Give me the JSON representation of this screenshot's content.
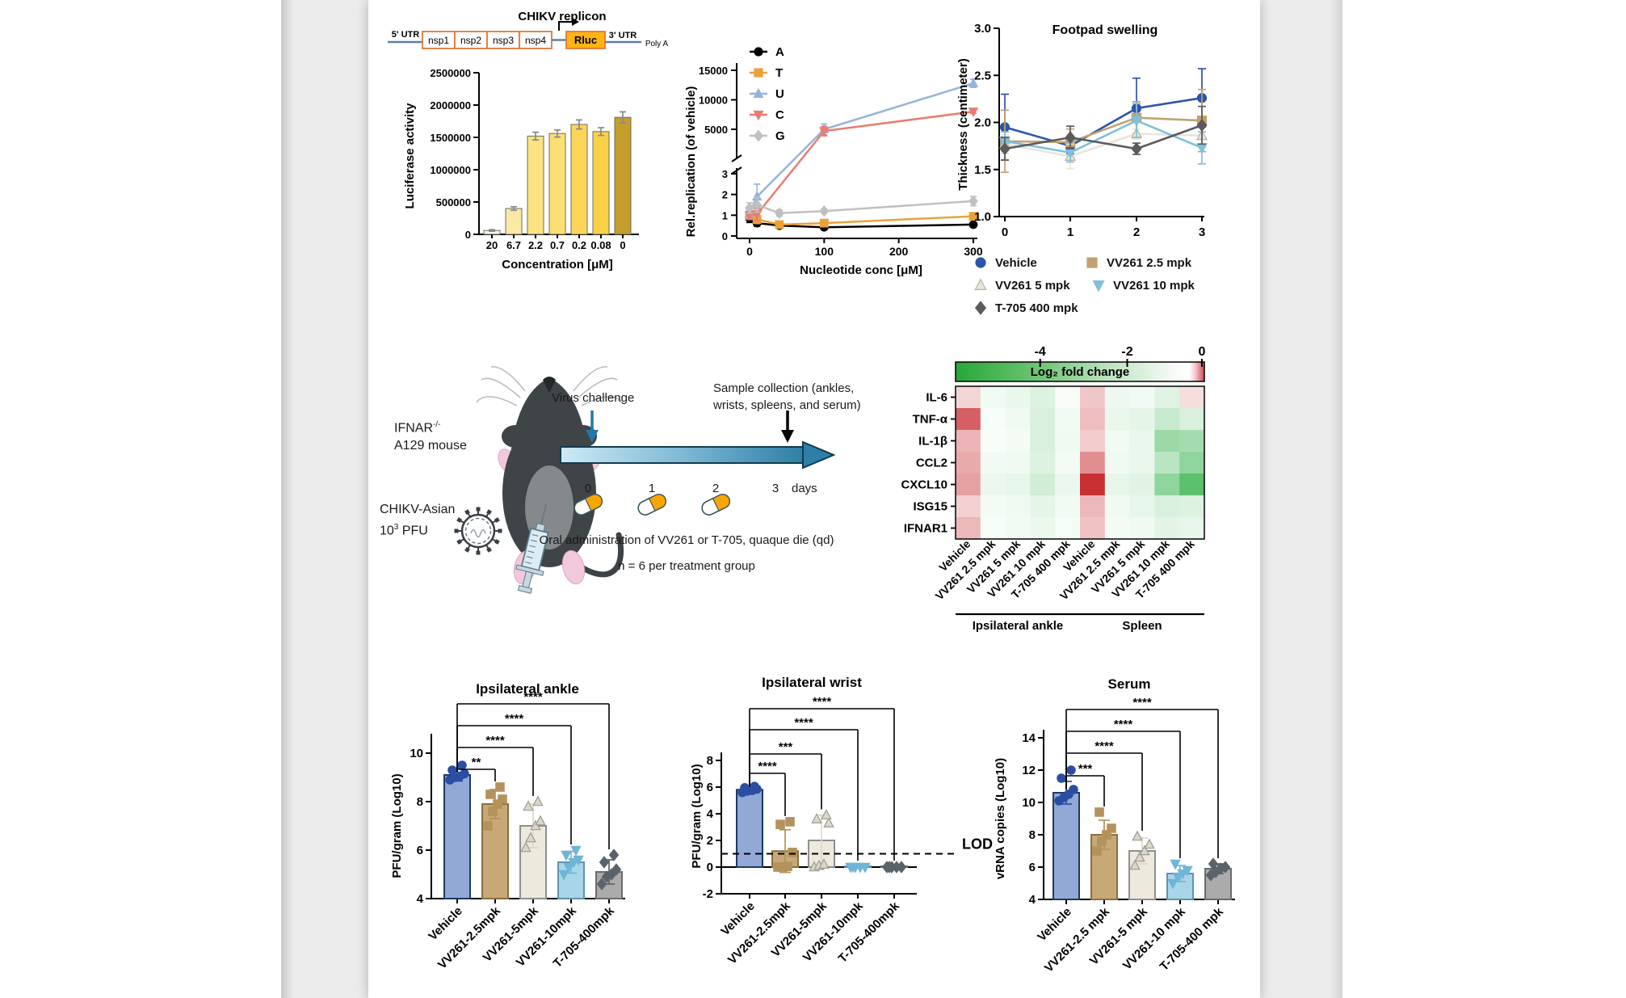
{
  "treatment_styles": [
    {
      "name": "Vehicle",
      "fill": "#92A8D5",
      "stroke": "#1F3864",
      "point": "#2B4EA2",
      "marker": "circle"
    },
    {
      "name": "VV261 2.5 mpk",
      "fill": "#C6A977",
      "stroke": "#8B6F3E",
      "point": "#B3925C",
      "marker": "square"
    },
    {
      "name": "VV261 5 mpk",
      "fill": "#EDE9DD",
      "stroke": "#8F8F8F",
      "point": "#DDD8C4",
      "pstroke": "#9A9A9A",
      "marker": "triangle-up"
    },
    {
      "name": "VV261 10 mpk",
      "fill": "#A9D5E9",
      "stroke": "#5E93AC",
      "point": "#6FB5D6",
      "marker": "triangle-down"
    },
    {
      "name": "T-705 400 mpk",
      "fill": "#ABABAB",
      "stroke": "#6B6B6B",
      "point": "#5A626B",
      "marker": "diamond"
    }
  ],
  "replicon": {
    "title": "CHIKV replicon",
    "utr5": "5' UTR",
    "utr3": "3' UTR",
    "polya": "Poly A",
    "genes": [
      "nsp1",
      "nsp2",
      "nsp3",
      "nsp4"
    ],
    "reporter": "Rluc",
    "gene_fill": "#ffffff",
    "gene_stroke": "#E0793B",
    "reporter_fill": "#FFB411",
    "line_color": "#5B7FA6"
  },
  "chart_data": [
    {
      "panel": "luciferase",
      "type": "bar",
      "ylabel": "Luciferase activity",
      "xlabel": "Concentration [μM]",
      "categories": [
        "20",
        "6.7",
        "2.2",
        "0.7",
        "0.2",
        "0.08",
        "0"
      ],
      "values": [
        60000,
        400000,
        1520000,
        1560000,
        1700000,
        1590000,
        1810000
      ],
      "errors": [
        12000,
        28000,
        60000,
        55000,
        70000,
        60000,
        85000
      ],
      "colors": [
        "#FAF5DE",
        "#FBE9A6",
        "#FCE381",
        "#FCDF72",
        "#FBD659",
        "#F9D146",
        "#C49E2A"
      ],
      "yticks": [
        0,
        500000,
        1000000,
        1500000,
        2000000,
        2500000
      ],
      "ylim": [
        0,
        2500000
      ]
    },
    {
      "panel": "nucleotide",
      "type": "line",
      "ylabel": "Rel.replication (of vehicle)",
      "xlabel": "Nucleotide conc [μM]",
      "xticks": [
        0,
        100,
        200,
        300
      ],
      "yticks_top": [
        5000,
        10000,
        15000
      ],
      "yticks_bottom": [
        0,
        1,
        2,
        3
      ],
      "axis_break": true,
      "series": [
        {
          "name": "A",
          "color": "#000000",
          "marker": "circle",
          "x": [
            0,
            10,
            40,
            100,
            300
          ],
          "y": [
            0.85,
            0.62,
            0.5,
            0.42,
            0.55
          ],
          "err": [
            0.2,
            0.15,
            0.08,
            0.06,
            0.08
          ]
        },
        {
          "name": "T",
          "color": "#E9A23B",
          "marker": "square",
          "x": [
            0,
            10,
            40,
            100,
            300
          ],
          "y": [
            1.0,
            0.8,
            0.55,
            0.62,
            0.95
          ],
          "err": [
            0.15,
            0.2,
            0.1,
            0.08,
            0.1
          ]
        },
        {
          "name": "U",
          "color": "#96B3DF",
          "marker": "triangle-up",
          "x": [
            0,
            10,
            100,
            300
          ],
          "y": [
            1.1,
            1.9,
            5000,
            12800
          ],
          "err": [
            0.3,
            0.6,
            900,
            700
          ]
        },
        {
          "name": "C",
          "color": "#E97C6F",
          "marker": "triangle-down",
          "x": [
            0,
            10,
            100,
            300
          ],
          "y": [
            1.0,
            1.05,
            4700,
            8000
          ],
          "err": [
            0.2,
            0.3,
            800,
            300
          ]
        },
        {
          "name": "G",
          "color": "#C0C0C0",
          "marker": "diamond",
          "x": [
            0,
            10,
            40,
            100,
            300
          ],
          "y": [
            1.35,
            1.5,
            1.1,
            1.2,
            1.68
          ],
          "err": [
            0.25,
            0.35,
            0.15,
            0.1,
            0.22
          ]
        }
      ]
    },
    {
      "panel": "footpad",
      "type": "line",
      "title": "Footpad swelling",
      "ylabel": "Thickness (centimeter)",
      "ylim": [
        1.0,
        3.0
      ],
      "yticks": [
        "1.0",
        "1.5",
        "2.0",
        "2.5",
        "3.0"
      ],
      "x": [
        0,
        1,
        2,
        3
      ],
      "series": [
        {
          "name": "Vehicle",
          "color": "#2C55A8",
          "marker": "circle",
          "y": [
            1.95,
            1.75,
            2.15,
            2.26
          ],
          "err": [
            0.35,
            0.08,
            0.32,
            0.31
          ]
        },
        {
          "name": "VV261 2.5 mpk",
          "color": "#C2A271",
          "marker": "square",
          "y": [
            1.8,
            1.79,
            2.05,
            2.02
          ],
          "err": [
            0.33,
            0.14,
            0.17,
            0.33
          ]
        },
        {
          "name": "VV261 5 mpk",
          "color": "#E9E5D9",
          "edge": "#B9B3A4",
          "marker": "triangle-up",
          "y": [
            1.77,
            1.64,
            1.88,
            1.86
          ],
          "err": [
            0.1,
            0.13,
            0.05,
            0.12
          ]
        },
        {
          "name": "VV261 10 mpk",
          "color": "#7FC0DC",
          "marker": "triangle-down",
          "y": [
            1.8,
            1.68,
            2.02,
            1.73
          ],
          "err": [
            0.1,
            0.1,
            0.18,
            0.17
          ]
        },
        {
          "name": "T-705 400 mpk",
          "color": "#5B5B5B",
          "marker": "diamond",
          "y": [
            1.72,
            1.84,
            1.72,
            1.97
          ],
          "err": [
            0.12,
            0.12,
            0.06,
            0.2
          ]
        }
      ],
      "legend": [
        "Vehicle",
        "VV261 2.5 mpk",
        "VV261 5 mpk",
        "VV261 10 mpk",
        "T-705 400 mpk"
      ]
    },
    {
      "panel": "cytokines",
      "type": "heatmap",
      "colorbar": {
        "label": "Log₂ fold change",
        "ticks": [
          "-4",
          "-2",
          "0"
        ],
        "tick_pos": [
          0.34,
          0.69,
          0.99
        ]
      },
      "rows": [
        "IL-6",
        "TNF-α",
        "IL-1β",
        "CCL2",
        "CXCL10",
        "ISG15",
        "IFNAR1"
      ],
      "cols": [
        "Vehicle",
        "VV261 2.5 mpk",
        "VV261 5 mpk",
        "VV261 10 mpk",
        "T-705 400 mpk",
        "Vehicle",
        "VV261 2.5 mpk",
        "VV261 5 mpk",
        "VV261 10 mpk",
        "T-705 400 mpk"
      ],
      "groups": [
        {
          "label": "Ipsilateral ankle",
          "from": 0,
          "to": 4
        },
        {
          "label": "Spleen",
          "from": 5,
          "to": 9
        }
      ],
      "values": [
        [
          0.45,
          -0.3,
          -0.5,
          -0.8,
          -0.15,
          0.6,
          -0.4,
          -0.3,
          -0.7,
          0.35
        ],
        [
          1.7,
          -0.2,
          -0.35,
          -0.9,
          -0.3,
          0.7,
          -0.5,
          -0.6,
          -1.3,
          -0.9
        ],
        [
          0.8,
          -0.15,
          -0.25,
          -0.9,
          -0.35,
          0.55,
          -0.3,
          -0.5,
          -2.3,
          -2.1
        ],
        [
          0.9,
          -0.3,
          -0.35,
          -0.8,
          -0.25,
          1.2,
          -0.35,
          -0.5,
          -1.6,
          -2.6
        ],
        [
          1.0,
          -0.45,
          -0.55,
          -1.1,
          -0.45,
          2.2,
          -0.55,
          -0.7,
          -2.6,
          -3.8
        ],
        [
          0.5,
          -0.25,
          -0.35,
          -0.6,
          -0.3,
          0.75,
          -0.35,
          -0.55,
          -0.9,
          -0.8
        ],
        [
          0.75,
          -0.2,
          -0.3,
          -0.45,
          -0.2,
          0.65,
          -0.25,
          -0.35,
          -0.65,
          -0.55
        ]
      ]
    },
    {
      "panel": "ankle",
      "type": "bar-scatter",
      "title": "Ipsilateral ankle",
      "ylabel": "PFU/gram (Log10)",
      "ylim": [
        4,
        10.8
      ],
      "yticks": [
        4,
        6,
        8,
        10
      ],
      "baseline": 4,
      "categories": [
        "Vehicle",
        "VV261-2.5mpk",
        "VV261-5mpk",
        "VV261-10mpk",
        "T-705-400mpk"
      ],
      "values": [
        9.1,
        7.9,
        7.0,
        5.5,
        5.1
      ],
      "errors": [
        0.25,
        0.6,
        0.9,
        0.45,
        0.5
      ],
      "points": [
        [
          8.9,
          9.0,
          9.05,
          9.15,
          9.3,
          9.5
        ],
        [
          7.0,
          7.6,
          7.9,
          8.1,
          8.3,
          8.6
        ],
        [
          6.1,
          6.5,
          7.0,
          7.2,
          7.8,
          8.0
        ],
        [
          5.0,
          5.3,
          5.5,
          5.6,
          5.8,
          6.0
        ],
        [
          4.6,
          4.9,
          5.0,
          5.2,
          5.5,
          5.8
        ]
      ],
      "sig": [
        {
          "target": 1,
          "label": "**"
        },
        {
          "target": 2,
          "label": "****"
        },
        {
          "target": 3,
          "label": "****"
        },
        {
          "target": 4,
          "label": "****"
        }
      ]
    },
    {
      "panel": "wrist",
      "type": "bar-scatter",
      "title": "Ipsilateral wrist",
      "ylabel": "PFU/gram (Log10)",
      "ylim": [
        -2,
        8.6
      ],
      "yticks": [
        -2,
        0,
        2,
        4,
        6,
        8
      ],
      "baseline": 0,
      "zero": 0,
      "lod": {
        "value": 1,
        "label": "LOD"
      },
      "categories": [
        "Vehicle",
        "VV261-2.5mpk",
        "VV261-5mpk",
        "VV261-10mpk",
        "T-705-400mpk"
      ],
      "values": [
        5.8,
        1.2,
        2.0,
        0.06,
        0.06
      ],
      "errors": [
        0.25,
        1.6,
        1.9,
        0,
        0
      ],
      "points": [
        [
          5.6,
          5.7,
          5.75,
          5.85,
          5.95,
          6.05
        ],
        [
          0,
          0,
          0.05,
          1.1,
          3.2,
          3.4
        ],
        [
          0,
          0.1,
          0.2,
          3.3,
          3.6,
          3.9
        ],
        [
          0,
          0,
          0,
          0,
          0
        ],
        [
          0,
          0,
          0,
          0,
          0
        ]
      ],
      "sig": [
        {
          "target": 1,
          "label": "****"
        },
        {
          "target": 2,
          "label": "***"
        },
        {
          "target": 3,
          "label": "****"
        },
        {
          "target": 4,
          "label": "****"
        }
      ]
    },
    {
      "panel": "serum",
      "type": "bar-scatter",
      "title": "Serum",
      "ylabel": "vRNA copies (Log10)",
      "ylim": [
        4,
        14.5
      ],
      "yticks": [
        4,
        6,
        8,
        10,
        12,
        14
      ],
      "baseline": 4,
      "categories": [
        "Vehicle",
        "VV261-2.5 mpk",
        "VV261-5 mpk",
        "VV261-10 mpk",
        "T-705-400 mpk"
      ],
      "values": [
        10.6,
        8.0,
        7.0,
        5.6,
        5.9
      ],
      "errors": [
        0.7,
        0.9,
        0.8,
        0.5,
        0.3
      ],
      "points": [
        [
          10.1,
          10.3,
          10.5,
          10.8,
          11.5,
          12.0
        ],
        [
          7.0,
          7.6,
          8.0,
          8.4,
          9.4
        ],
        [
          6.1,
          6.6,
          7.0,
          7.4,
          7.9
        ],
        [
          5.0,
          5.4,
          5.6,
          5.8,
          6.2
        ],
        [
          5.5,
          5.7,
          5.9,
          6.0,
          6.2
        ]
      ],
      "sig": [
        {
          "target": 1,
          "label": "***"
        },
        {
          "target": 2,
          "label": "****"
        },
        {
          "target": 3,
          "label": "****"
        },
        {
          "target": 4,
          "label": "****"
        }
      ]
    }
  ],
  "diagram": {
    "mouse_label_base": "IFNAR",
    "mouse_label_sup": "-/-",
    "mouse_label_line2": "A129 mouse",
    "virus_label_line1": "CHIKV-Asian",
    "virus_label_base": "10",
    "virus_label_sup": "3",
    "virus_label_suffix": " PFU",
    "virus_challenge": "Virus challenge",
    "sample_line1": "Sample collection (ankles,",
    "sample_line2": "wrists, spleens, and serum)",
    "days": [
      "0",
      "1",
      "2",
      "3"
    ],
    "days_unit": "days",
    "oral_text": "Oral administration of VV261 or T-705, quaque die (qd)",
    "n_text": "n = 6 per treatment group"
  }
}
